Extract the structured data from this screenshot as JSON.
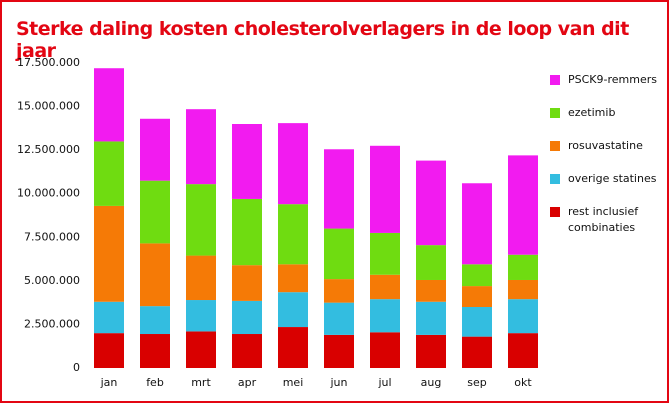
{
  "chart_data": {
    "type": "stacked-bar",
    "title": "Sterke daling kosten cholesterolverlagers in de loop van dit jaar",
    "categories": [
      "jan",
      "feb",
      "mrt",
      "apr",
      "mei",
      "jun",
      "jul",
      "aug",
      "sep",
      "okt"
    ],
    "series": [
      {
        "name": "rest inclusief combinaties",
        "color": "#d90000",
        "values": [
          2000000,
          1950000,
          2100000,
          1950000,
          2350000,
          1900000,
          2050000,
          1900000,
          1800000,
          2000000
        ]
      },
      {
        "name": "overige statines",
        "color": "#33bde0",
        "values": [
          1800000,
          1600000,
          1800000,
          1900000,
          2000000,
          1850000,
          1900000,
          1900000,
          1700000,
          1950000
        ]
      },
      {
        "name": "rosuvastatine",
        "color": "#f57a06",
        "values": [
          5500000,
          3600000,
          2550000,
          2050000,
          1600000,
          1350000,
          1400000,
          1250000,
          1200000,
          1100000
        ]
      },
      {
        "name": "ezetimib",
        "color": "#6fdc11",
        "values": [
          3700000,
          3600000,
          4100000,
          3800000,
          3450000,
          2900000,
          2400000,
          2000000,
          1250000,
          1450000
        ]
      },
      {
        "name": "PSCK9-remmers",
        "color": "#f21bf0",
        "values": [
          4200000,
          3550000,
          4300000,
          4300000,
          4650000,
          4550000,
          5000000,
          4850000,
          4650000,
          5700000
        ]
      }
    ],
    "ylim": [
      0,
      17500000
    ],
    "yticks": [
      0,
      {
        "value": 2500000,
        "label": "2.500.000"
      },
      {
        "value": 5000000,
        "label": "5.000.000"
      },
      {
        "value": 7500000,
        "label": "7.500.000"
      },
      {
        "value": 10000000,
        "label": "10.000.000"
      },
      {
        "value": 12500000,
        "label": "12.500.000"
      },
      {
        "value": 15000000,
        "label": "15.000.000"
      },
      {
        "value": 17500000,
        "label": "17.500.000"
      }
    ]
  }
}
